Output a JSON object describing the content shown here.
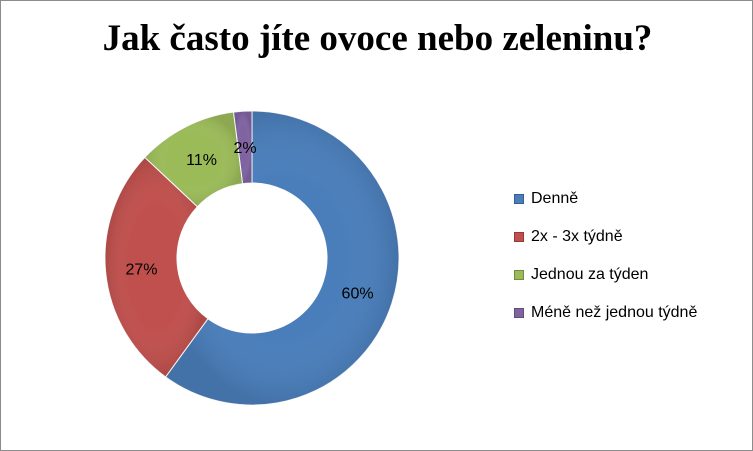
{
  "chart_data": {
    "type": "pie",
    "subtype": "doughnut",
    "title": "Jak často jíte ovoce nebo zeleninu?",
    "categories": [
      "Denně",
      "2x - 3x týdně",
      "Jednou za týden",
      "Méně než jednou týdně"
    ],
    "values": [
      60,
      27,
      11,
      2
    ],
    "labels": [
      "60%",
      "27%",
      "11%",
      "2%"
    ],
    "colors": [
      "#4a7ebb",
      "#c0504d",
      "#9bbb59",
      "#8064a2"
    ],
    "legend": "right",
    "grid": false
  }
}
